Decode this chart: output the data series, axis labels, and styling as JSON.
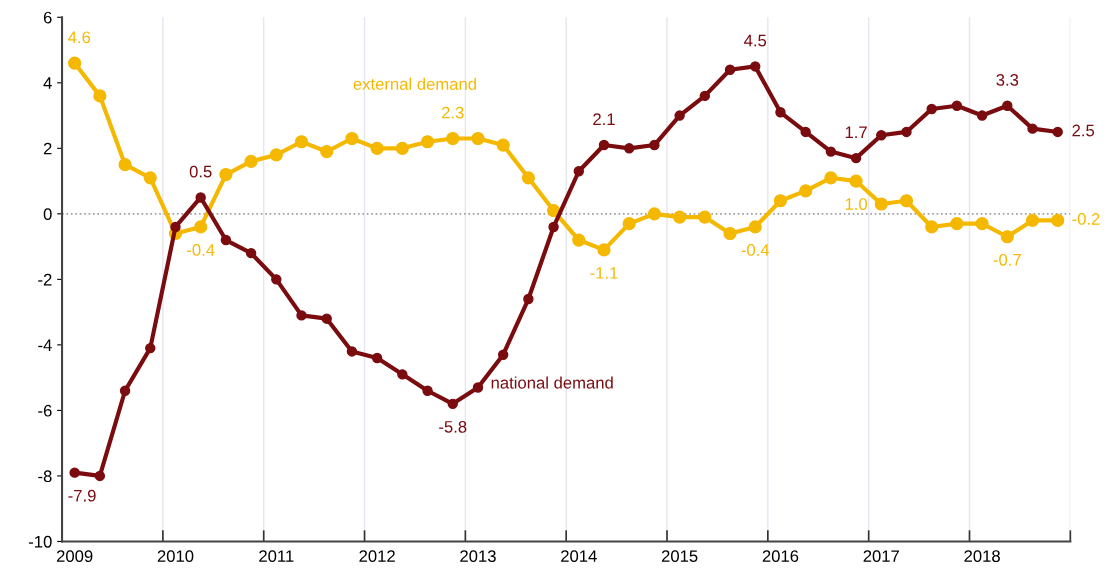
{
  "chart_data": {
    "type": "line",
    "categories": [
      "2009",
      null,
      null,
      null,
      "2010",
      null,
      null,
      null,
      "2011",
      null,
      null,
      null,
      "2012",
      null,
      null,
      null,
      "2013",
      null,
      null,
      null,
      "2014",
      null,
      null,
      null,
      "2015",
      null,
      null,
      null,
      "2016",
      null,
      null,
      null,
      "2017",
      null,
      null,
      null,
      "2018",
      null,
      null,
      null
    ],
    "series": [
      {
        "name": "external demand",
        "color": "#f5b800",
        "values": [
          4.6,
          3.6,
          1.5,
          1.1,
          -0.6,
          -0.4,
          1.2,
          1.6,
          1.8,
          2.2,
          1.9,
          2.3,
          2.0,
          2.0,
          2.2,
          2.3,
          2.3,
          2.1,
          1.1,
          0.1,
          -0.8,
          -1.1,
          -0.3,
          0.0,
          -0.1,
          -0.1,
          -0.6,
          -0.4,
          0.4,
          0.7,
          1.1,
          1.0,
          0.3,
          0.4,
          -0.4,
          -0.3,
          -0.3,
          -0.7,
          -0.2,
          -0.2
        ],
        "value_labels": [
          "4.6",
          null,
          null,
          null,
          null,
          "-0.4",
          null,
          null,
          null,
          null,
          null,
          null,
          null,
          null,
          null,
          "2.3",
          null,
          null,
          null,
          null,
          null,
          "-1.1",
          null,
          null,
          null,
          null,
          null,
          "-0.4",
          null,
          null,
          null,
          "1.0",
          null,
          null,
          null,
          null,
          null,
          "-0.7",
          null,
          "-0.2"
        ]
      },
      {
        "name": "national demand",
        "color": "#7a0c10",
        "values": [
          -7.9,
          -8.0,
          -5.4,
          -4.1,
          -0.4,
          0.5,
          -0.8,
          -1.2,
          -2.0,
          -3.1,
          -3.2,
          -4.2,
          -4.4,
          -4.9,
          -5.4,
          -5.8,
          -5.3,
          -4.3,
          -2.6,
          -0.4,
          1.3,
          2.1,
          2.0,
          2.1,
          3.0,
          3.6,
          4.4,
          4.5,
          3.1,
          2.5,
          1.9,
          1.7,
          2.4,
          2.5,
          3.2,
          3.3,
          3.0,
          3.3,
          2.6,
          2.5
        ],
        "value_labels": [
          "-7.9",
          null,
          null,
          null,
          null,
          "0.5",
          null,
          null,
          null,
          null,
          null,
          null,
          null,
          null,
          null,
          "-5.8",
          null,
          null,
          null,
          null,
          null,
          "2.1",
          null,
          null,
          null,
          null,
          null,
          "4.5",
          null,
          null,
          null,
          "1.7",
          null,
          null,
          null,
          null,
          null,
          "3.3",
          null,
          "2.5"
        ]
      }
    ],
    "ylim": [
      -10,
      6
    ],
    "yticks": [
      -10,
      -8,
      -6,
      -4,
      -2,
      0,
      2,
      4,
      6
    ],
    "ref_lines": [
      {
        "axis": "y",
        "value": 0,
        "color": "#a0a0a0",
        "line_style": "dotted"
      }
    ],
    "grid": "x",
    "marker": "circle",
    "line_style": "solid",
    "legend": false
  }
}
